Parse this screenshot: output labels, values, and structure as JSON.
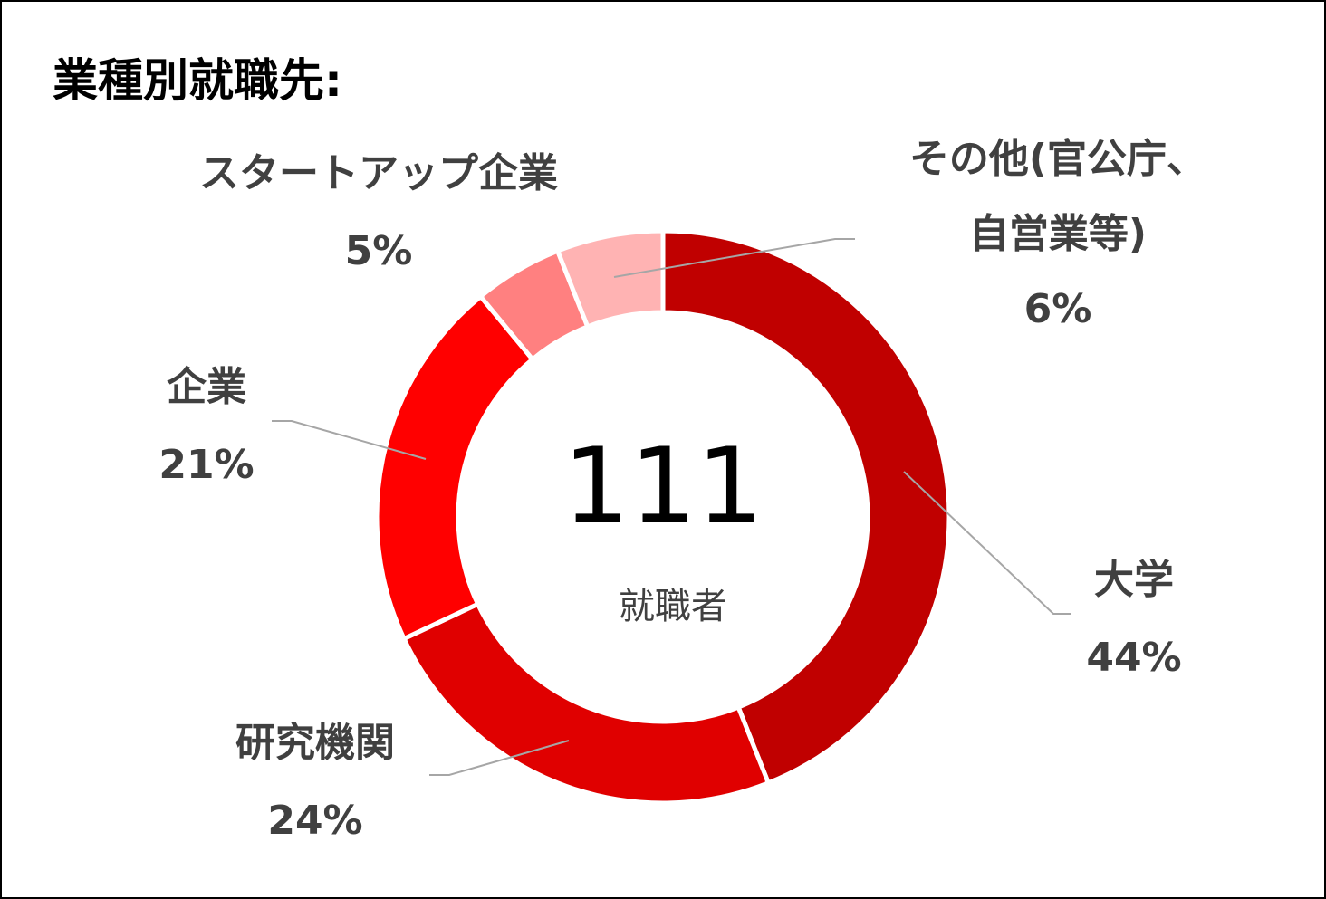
{
  "chart_data": {
    "type": "pie",
    "title": "業種別就職先:",
    "center": {
      "total": "111",
      "caption": "就職者"
    },
    "slices": [
      {
        "name": "大学",
        "value": 44,
        "label_lines": [
          "大学"
        ],
        "percent_label": "44%",
        "color": "#c00000"
      },
      {
        "name": "研究機関",
        "value": 24,
        "label_lines": [
          "研究機関"
        ],
        "percent_label": "24%",
        "color": "#e00000"
      },
      {
        "name": "企業",
        "value": 21,
        "label_lines": [
          "企業"
        ],
        "percent_label": "21%",
        "color": "#ff0000"
      },
      {
        "name": "スタートアップ企業",
        "value": 5,
        "label_lines": [
          "スタートアップ企業"
        ],
        "percent_label": "5%",
        "color": "#ff8080"
      },
      {
        "name": "その他(官公庁、自営業等)",
        "value": 6,
        "label_lines": [
          "その他(官公庁、",
          "自営業等)"
        ],
        "percent_label": "6%",
        "color": "#ffb3b3"
      }
    ],
    "legend": "none",
    "grid": false
  }
}
